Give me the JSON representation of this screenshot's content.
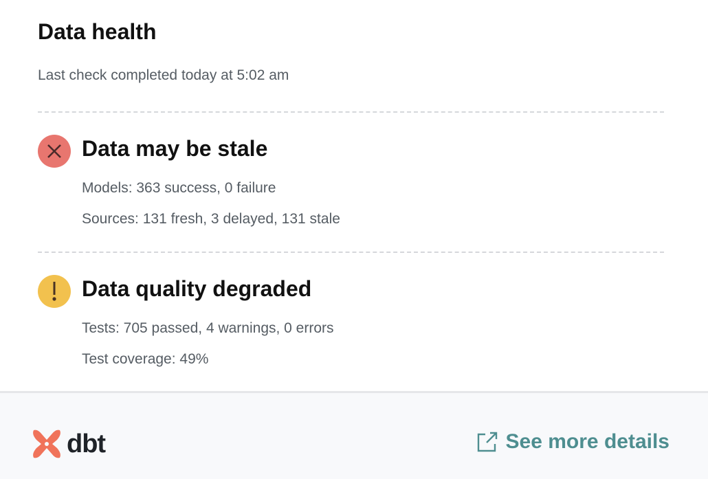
{
  "header": {
    "title": "Data health",
    "subtitle": "Last check completed today at 5:02 am"
  },
  "sections": [
    {
      "title": "Data may be stale",
      "icon": "x-circle-icon",
      "color": "#e8766f",
      "lines": [
        "Models: 363 success, 0 failure",
        "Sources: 131 fresh, 3 delayed, 131 stale"
      ]
    },
    {
      "title": "Data quality degraded",
      "icon": "exclamation-circle-icon",
      "color": "#f2c14e",
      "lines": [
        "Tests: 705 passed, 4 warnings, 0 errors",
        "Test coverage: 49%"
      ]
    }
  ],
  "footer": {
    "logo_text": "dbt",
    "logo_color": "#f0735a",
    "link_label": "See more details",
    "link_color": "#4e8e90"
  }
}
